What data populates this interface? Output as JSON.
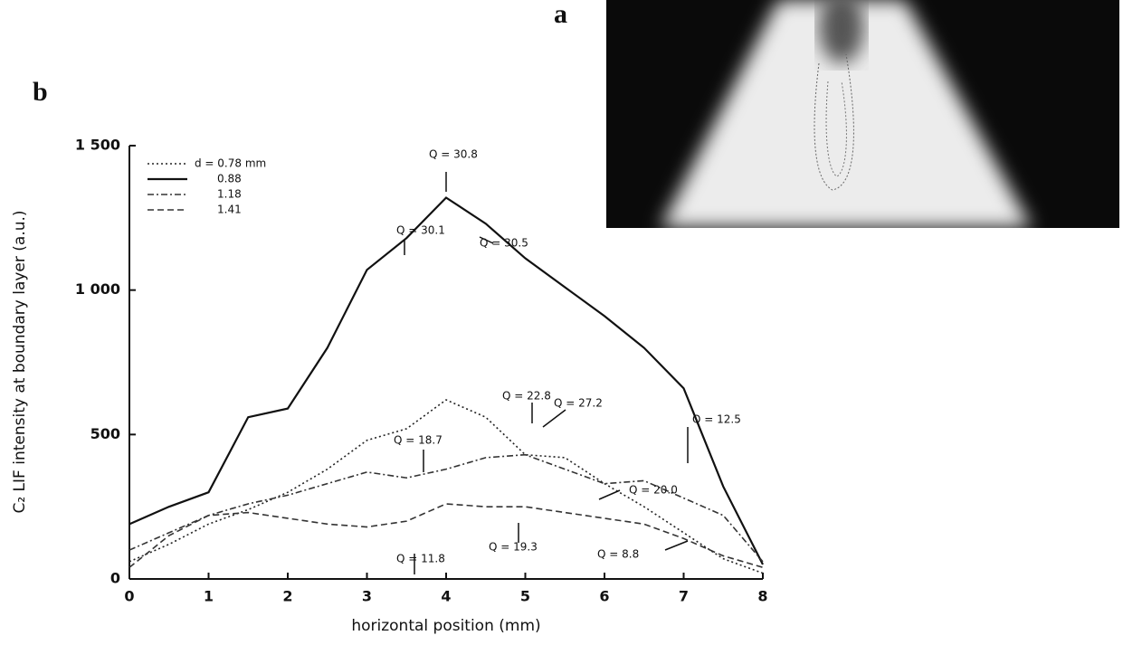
{
  "figure": {
    "panel_a_label": "a",
    "panel_b_label": "b"
  },
  "chart_data": {
    "type": "line",
    "x_label": "horizontal position (mm)",
    "y_label": "C₂ LIF intensity at boundary layer (a.u.)",
    "x": [
      0,
      0.5,
      1,
      1.5,
      2,
      2.5,
      3,
      3.5,
      4,
      4.5,
      5,
      5.5,
      6,
      6.5,
      7,
      7.5,
      8
    ],
    "xlim": [
      0,
      8
    ],
    "xticks": [
      0,
      1,
      2,
      3,
      4,
      5,
      6,
      7,
      8
    ],
    "ylim": [
      0,
      1500
    ],
    "yticks": [
      0,
      500,
      {
        "value": 1000,
        "label": "1 000"
      },
      {
        "value": 1500,
        "label": "1 500"
      }
    ],
    "legend": "upper left",
    "series": [
      {
        "name": "d = 0.78 mm",
        "color": "#222222",
        "dash": "dotted",
        "values": [
          60,
          120,
          190,
          240,
          300,
          380,
          480,
          520,
          620,
          560,
          430,
          420,
          330,
          250,
          160,
          70,
          20
        ]
      },
      {
        "name": "0.88",
        "color": "#111111",
        "dash": "solid",
        "values": [
          190,
          250,
          300,
          560,
          590,
          800,
          1070,
          1180,
          1320,
          1230,
          1110,
          1010,
          910,
          800,
          660,
          320,
          50
        ]
      },
      {
        "name": "1.18",
        "color": "#333333",
        "dash": "dashdot",
        "values": [
          100,
          160,
          220,
          260,
          290,
          330,
          370,
          350,
          380,
          420,
          430,
          380,
          330,
          340,
          280,
          220,
          60
        ]
      },
      {
        "name": "1.41",
        "color": "#333333",
        "dash": "dashed",
        "values": [
          40,
          150,
          220,
          230,
          210,
          190,
          180,
          200,
          260,
          250,
          250,
          230,
          210,
          190,
          140,
          80,
          40
        ]
      }
    ],
    "annotations": [
      "Q = 30.8",
      "Q = 30.5",
      "Q = 30.1",
      "Q = 22.8",
      "Q = 27.2",
      "Q = 18.7",
      "Q = 12.5",
      "Q = 20.0",
      "Q = 11.8",
      "Q = 19.3",
      "Q = 8.8"
    ]
  }
}
